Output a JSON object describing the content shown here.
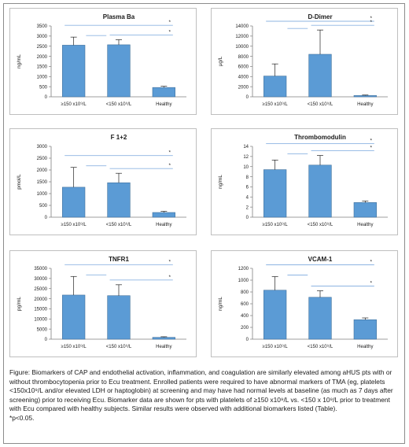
{
  "chart_data": [
    {
      "type": "bar",
      "title": "Plasma Ba",
      "ylabel": "ng/mL",
      "categories": [
        "≥150 x10⁹/L",
        "<150 x10⁹/L",
        "Healthy"
      ],
      "values": [
        2550,
        2570,
        460
      ],
      "errors": [
        400,
        250,
        60
      ],
      "ylim": [
        0,
        3500
      ],
      "yticks": [
        0,
        500,
        1000,
        1500,
        2000,
        2500,
        3000,
        3500
      ],
      "ytick_labels": [
        "0",
        "500",
        "1000",
        "1500",
        "2000",
        "2500",
        "3000",
        "3500"
      ],
      "significance": [
        {
          "from": 0,
          "to": 2,
          "label": "*"
        },
        {
          "from": 1,
          "to": 2,
          "label": "*"
        }
      ]
    },
    {
      "type": "bar",
      "title": "D-Dimer",
      "ylabel": "µg/L",
      "categories": [
        "≥150 x10⁹/L",
        "<150 x10⁹/L",
        "Healthy"
      ],
      "values": [
        4100,
        8400,
        250
      ],
      "errors": [
        2400,
        4800,
        100
      ],
      "ylim": [
        0,
        14000
      ],
      "yticks": [
        0,
        2000,
        4000,
        6000,
        8000,
        10000,
        12000,
        14000
      ],
      "ytick_labels": [
        "0",
        "2000",
        "4000",
        "6000",
        "8000",
        "10000",
        "12000",
        "14000"
      ],
      "significance": [
        {
          "from": 0,
          "to": 2,
          "label": "*"
        },
        {
          "from": 1,
          "to": 2,
          "label": "*"
        }
      ]
    },
    {
      "type": "bar",
      "title": "F 1+2",
      "ylabel": "pmol/L",
      "categories": [
        "≥150 x10⁹/L",
        "<150 x10⁹/L",
        "Healthy"
      ],
      "values": [
        1270,
        1460,
        200
      ],
      "errors": [
        840,
        400,
        50
      ],
      "ylim": [
        0,
        3000
      ],
      "yticks": [
        0,
        500,
        1000,
        1500,
        2000,
        2500,
        3000
      ],
      "ytick_labels": [
        "0",
        "500",
        "1000",
        "1500",
        "2000",
        "2500",
        "3000"
      ],
      "significance": [
        {
          "from": 0,
          "to": 2,
          "label": "*"
        },
        {
          "from": 1,
          "to": 2,
          "label": "*"
        }
      ]
    },
    {
      "type": "bar",
      "title": "Thrombomodulin",
      "ylabel": "ng/mL",
      "categories": [
        "≥150 x10⁹/L",
        "<150 x10⁹/L",
        "Healthy"
      ],
      "values": [
        9.4,
        10.3,
        2.9
      ],
      "errors": [
        1.9,
        1.9,
        0.3
      ],
      "ylim": [
        0,
        14
      ],
      "yticks": [
        0,
        2,
        4,
        6,
        8,
        10,
        12,
        14
      ],
      "ytick_labels": [
        "0",
        "2",
        "4",
        "6",
        "8",
        "10",
        "12",
        "14"
      ],
      "significance": [
        {
          "from": 0,
          "to": 2,
          "label": "*"
        },
        {
          "from": 1,
          "to": 2,
          "label": "*"
        }
      ]
    },
    {
      "type": "bar",
      "title": "TNFR1",
      "ylabel": "pg/mL",
      "categories": [
        "≥150 x10⁹/L",
        "<150 x10⁹/L",
        "Healthy"
      ],
      "values": [
        21800,
        21500,
        900
      ],
      "errors": [
        9200,
        5400,
        300
      ],
      "ylim": [
        0,
        35000
      ],
      "yticks": [
        0,
        5000,
        10000,
        15000,
        20000,
        25000,
        30000,
        35000
      ],
      "ytick_labels": [
        "0",
        "5000",
        "10000",
        "15000",
        "20000",
        "25000",
        "30000",
        "35000"
      ],
      "significance": [
        {
          "from": 0,
          "to": 2,
          "label": "*"
        },
        {
          "from": 1,
          "to": 2,
          "label": "*"
        }
      ]
    },
    {
      "type": "bar",
      "title": "VCAM-1",
      "ylabel": "ng/mL",
      "categories": [
        "≥150 x10⁹/L",
        "<150 x10⁹/L",
        "Healthy"
      ],
      "values": [
        830,
        710,
        330
      ],
      "errors": [
        230,
        110,
        30
      ],
      "ylim": [
        0,
        1200
      ],
      "yticks": [
        0,
        200,
        400,
        600,
        800,
        1000,
        1200
      ],
      "ytick_labels": [
        "0",
        "200",
        "400",
        "600",
        "800",
        "1000",
        "1200"
      ],
      "significance": [
        {
          "from": 0,
          "to": 2,
          "label": "*"
        },
        {
          "from": 1,
          "to": 2,
          "label": "*"
        }
      ]
    }
  ],
  "colors": {
    "bar_fill": "#5b9bd5",
    "bar_edge": "#41719c",
    "bracket": "#8db4e2",
    "axis": "#7f7f7f"
  },
  "caption": {
    "text": "Figure: Biomarkers of CAP and endothelial activation, inflammation, and coagulation are similarly elevated among aHUS pts with or without thrombocytopenia prior to Ecu treatment. Enrolled patients were required to have abnormal markers of TMA (eg, platelets <150x10⁹/L and/or elevated LDH or haptoglobin) at screening and may have had normal levels at baseline (as much as 7 days after screening) prior to receiving Ecu. Biomarker data are shown for pts with platelets of ≥150 x10⁹/L vs. <150 x 10⁹/L prior to treatment with Ecu compared with healthy subjects. Similar results were observed with additional biomarkers listed (Table).",
    "footnote": "*p<0.05."
  }
}
